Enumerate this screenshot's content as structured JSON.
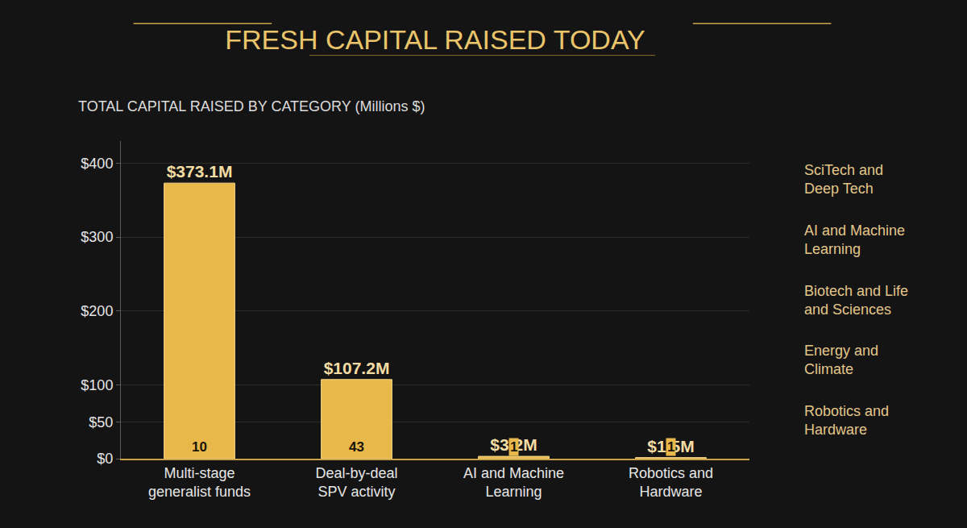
{
  "chart_data": {
    "type": "bar",
    "title": "FRESH CAPITAL RAISED TODAY",
    "subtitle": "TOTAL CAPITAL RAISED BY CATEGORY (Millions $)",
    "categories": [
      "Multi-stage generalist funds",
      "Deal-by-deal SPV activity",
      "AI and Machine Learning",
      "Robotics and Hardware"
    ],
    "values": [
      373.1,
      107.2,
      3.2,
      1.5
    ],
    "value_labels": [
      "$373.1M",
      "$107.2M",
      "$3.2M",
      "$1.5M"
    ],
    "deal_counts": [
      10,
      43,
      1,
      1
    ],
    "key_labels": [
      "SciTech and Deep Tech",
      "AI and Machine Learning",
      "Biotech and Life and Sciences",
      "Energy and Climate",
      "Robotics and Hardware"
    ],
    "color": "#e8b84a",
    "ylim": [
      0,
      430
    ],
    "yticks": [
      {
        "value": 0,
        "label": "$0"
      },
      {
        "value": 50,
        "label": "$50"
      },
      {
        "value": 100,
        "label": "$100"
      },
      {
        "value": 200,
        "label": "$200"
      },
      {
        "value": 300,
        "label": "$300"
      },
      {
        "value": 400,
        "label": "$400"
      }
    ],
    "grid": true,
    "data_labels": true
  }
}
